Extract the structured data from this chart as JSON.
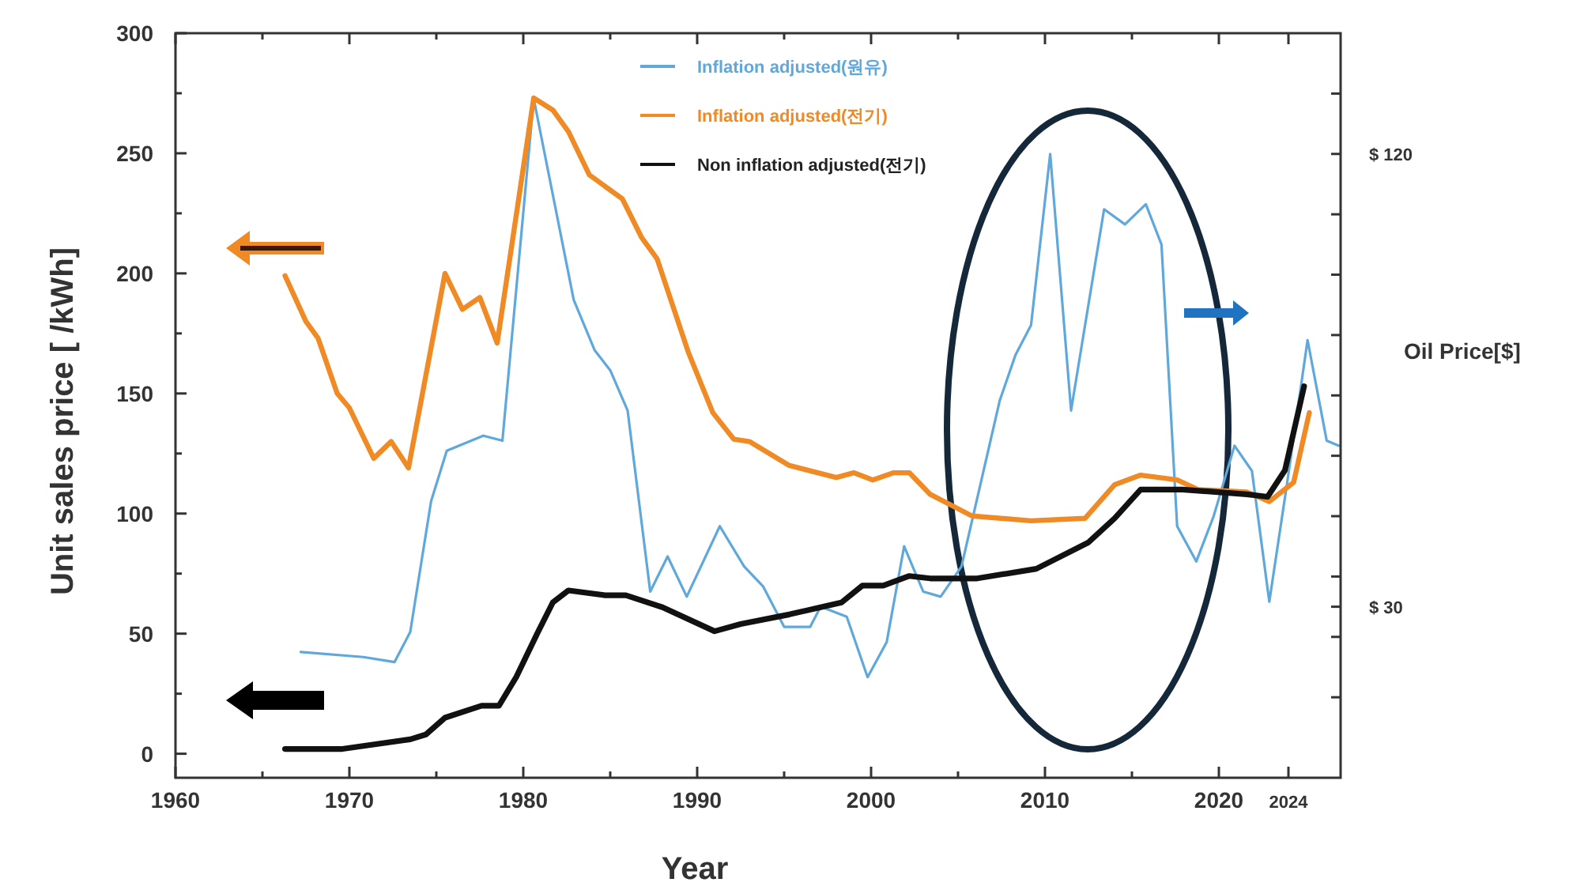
{
  "chart_data": {
    "type": "line",
    "xlabel": "Year",
    "ylabel": "Unit sales price [ /kWh]",
    "y2label": "Oil Price[$]",
    "legend": "top",
    "xlim": [
      1960,
      2027
    ],
    "xticks": [
      1960,
      {
        "value": 1965,
        "label": null
      },
      1970,
      {
        "value": 1975,
        "label": null
      },
      1980,
      {
        "value": 1985,
        "label": null
      },
      1990,
      {
        "value": 1995,
        "label": null
      },
      2000,
      {
        "value": 2005,
        "label": null
      },
      2010,
      {
        "value": 2015,
        "label": null
      },
      2020,
      2024
    ],
    "ylim": [
      -10,
      300
    ],
    "yticks": [
      0,
      {
        "value": 25,
        "label": null
      },
      50,
      {
        "value": 75,
        "label": null
      },
      100,
      {
        "value": 125,
        "label": null
      },
      150,
      {
        "value": 175,
        "label": null
      },
      200,
      {
        "value": 225,
        "label": null
      },
      250,
      {
        "value": 275,
        "label": null
      },
      300
    ],
    "y2lim": [
      -4,
      144
    ],
    "y2ticks": [
      {
        "value": 12,
        "label": null
      },
      {
        "value": 24,
        "label": null
      },
      {
        "value": 30,
        "label": "$ 30"
      },
      {
        "value": 36,
        "label": null
      },
      {
        "value": 48,
        "label": null
      },
      {
        "value": 60,
        "label": null
      },
      {
        "value": 72,
        "label": null
      },
      {
        "value": 84,
        "label": null
      },
      {
        "value": 96,
        "label": null
      },
      {
        "value": 108,
        "label": null
      },
      {
        "value": 120,
        "label": "$ 120"
      },
      {
        "value": 132,
        "label": null
      }
    ],
    "series": [
      {
        "name": "Inflation adjusted(원유)",
        "color": "#5fa8dc",
        "axis": "y2",
        "x": [
          1967.2,
          1970.8,
          1972.6,
          1973.5,
          1974.7,
          1975.6,
          1977.7,
          1978.8,
          1980.6,
          1982.9,
          1984.1,
          1985.0,
          1986.0,
          1987.3,
          1988.3,
          1989.4,
          1991.3,
          1992.7,
          1993.8,
          1995.0,
          1996.5,
          1997.1,
          1998.6,
          1999.8,
          2000.9,
          2001.9,
          2003.0,
          2004.0,
          2005.2,
          2007.4,
          2008.3,
          2009.2,
          2010.3,
          2011.5,
          2013.4,
          2014.6,
          2015.8,
          2016.7,
          2017.6,
          2018.7,
          2019.7,
          2020.9,
          2021.9,
          2022.9,
          2023.9,
          2025.1,
          2026.2,
          2026.9
        ],
        "values": [
          21,
          20,
          19,
          25,
          51,
          61,
          64,
          63,
          131,
          91,
          81,
          77,
          69,
          33,
          40,
          32,
          46,
          38,
          34,
          26,
          26,
          30,
          28,
          16,
          23,
          42,
          33,
          32,
          38,
          71,
          80,
          86,
          120,
          69,
          109,
          106,
          110,
          102,
          46,
          39,
          48,
          62,
          57,
          31,
          54,
          83,
          63,
          62
        ]
      },
      {
        "name": "Inflation adjusted(전기)",
        "color": "#f08a24",
        "x": [
          1966.3,
          1967.5,
          1968.2,
          1969.3,
          1970.0,
          1971.4,
          1972.4,
          1973.4,
          1975.5,
          1976.5,
          1977.5,
          1978.5,
          1980.6,
          1981.7,
          1982.6,
          1983.8,
          1985.7,
          1986.8,
          1987.7,
          1989.5,
          1990.9,
          1992.1,
          1993.0,
          1995.3,
          1998.0,
          1999.0,
          2000.1,
          2001.3,
          2002.2,
          2003.4,
          2005.8,
          2009.2,
          2012.3,
          2014.0,
          2015.5,
          2017.6,
          2018.8,
          2021.6,
          2022.9,
          2024.3,
          2025.2
        ],
        "values": [
          199,
          180,
          173,
          150,
          144,
          123,
          130,
          119,
          200,
          185,
          190,
          171,
          273,
          268,
          259,
          241,
          231,
          215,
          206,
          167,
          142,
          131,
          130,
          120,
          115,
          117,
          114,
          117,
          117,
          108,
          99,
          97,
          98,
          112,
          116,
          114,
          110,
          109,
          105,
          113,
          142
        ]
      },
      {
        "name": "Non inflation adjusted(전기)",
        "color": "#111111",
        "x": [
          1966.3,
          1969.6,
          1973.5,
          1974.4,
          1975.5,
          1977.6,
          1978.6,
          1979.6,
          1980.8,
          1981.7,
          1982.6,
          1984.7,
          1985.9,
          1988.0,
          1991.0,
          1992.5,
          1995.3,
          1998.3,
          1999.5,
          2000.7,
          2002.2,
          2003.4,
          2006.1,
          2009.5,
          2012.5,
          2014.0,
          2015.5,
          2017.9,
          2021.6,
          2022.8,
          2023.8,
          2024.9
        ],
        "values": [
          2,
          2,
          6,
          8,
          15,
          20,
          20,
          32,
          50,
          63,
          68,
          66,
          66,
          61,
          51,
          54,
          58,
          63,
          70,
          70,
          74,
          73,
          73,
          77,
          88,
          98,
          110,
          110,
          108,
          107,
          118,
          153
        ]
      }
    ]
  }
}
